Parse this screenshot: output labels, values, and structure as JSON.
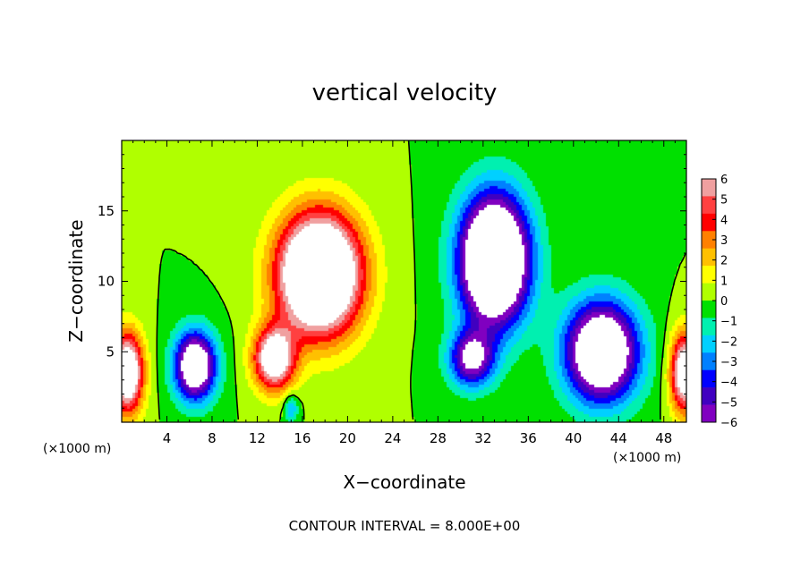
{
  "chart_data": {
    "type": "heatmap",
    "title": "vertical velocity",
    "xlabel": "X−coordinate",
    "ylabel": "Z−coordinate",
    "x_unit_left": "(×1000 m)",
    "x_unit_right": "(×1000 m)",
    "note": "CONTOUR INTERVAL = 8.000E+00",
    "xlim": [
      0,
      50
    ],
    "ylim": [
      0,
      20
    ],
    "x_ticks": [
      4,
      8,
      12,
      16,
      20,
      24,
      28,
      32,
      36,
      40,
      44,
      48
    ],
    "y_ticks": [
      5,
      10,
      15
    ],
    "x_tick_labels": [
      "4",
      "8",
      "12",
      "16",
      "20",
      "24",
      "28",
      "32",
      "36",
      "40",
      "44",
      "48"
    ],
    "y_tick_labels": [
      "5",
      "10",
      "15"
    ],
    "colorbar": {
      "range": [
        -6,
        6
      ],
      "tick_values": [
        6,
        5,
        4,
        3,
        2,
        1,
        0,
        -1,
        -2,
        -3,
        -4,
        -5,
        -6
      ],
      "tick_labels": [
        "6",
        "5",
        "4",
        "3",
        "2",
        "1",
        "0",
        "−1",
        "−2",
        "−3",
        "−4",
        "−5",
        "−6"
      ],
      "colors": [
        "#f0a0a0",
        "#ff4040",
        "#ff0000",
        "#ff8000",
        "#ffc000",
        "#ffff00",
        "#b0ff00",
        "#00e000",
        "#00f0b0",
        "#00d0ff",
        "#0080ff",
        "#0000ff",
        "#4000c0",
        "#8000c0"
      ]
    },
    "field_features": [
      {
        "name": "updraft-core",
        "x": 17.5,
        "z": 10.5,
        "sx": 3.6,
        "sz": 4.2,
        "value": 14
      },
      {
        "name": "updraft-lower",
        "x": 13.5,
        "z": 4.5,
        "sx": 1.8,
        "sz": 2.2,
        "value": 9
      },
      {
        "name": "updraft-left-edge",
        "x": 0.5,
        "z": 3.5,
        "sx": 1.4,
        "sz": 2.8,
        "value": 10
      },
      {
        "name": "updraft-right-edge",
        "x": 49.8,
        "z": 3.5,
        "sx": 1.2,
        "sz": 2.8,
        "value": 9
      },
      {
        "name": "downdraft-upper",
        "x": 33.0,
        "z": 11.5,
        "sx": 3.0,
        "sz": 4.5,
        "value": -14
      },
      {
        "name": "downdraft-low-left",
        "x": 6.5,
        "z": 4.0,
        "sx": 1.8,
        "sz": 2.4,
        "value": -10
      },
      {
        "name": "downdraft-low-right",
        "x": 42.5,
        "z": 5.0,
        "sx": 3.2,
        "sz": 3.5,
        "value": -11
      },
      {
        "name": "downdraft-mid",
        "x": 31.0,
        "z": 4.5,
        "sx": 2.0,
        "sz": 2.0,
        "value": -7
      },
      {
        "name": "weak-down-lowcenter",
        "x": 15.0,
        "z": 1.0,
        "sx": 0.6,
        "sz": 1.0,
        "value": -3
      }
    ]
  }
}
